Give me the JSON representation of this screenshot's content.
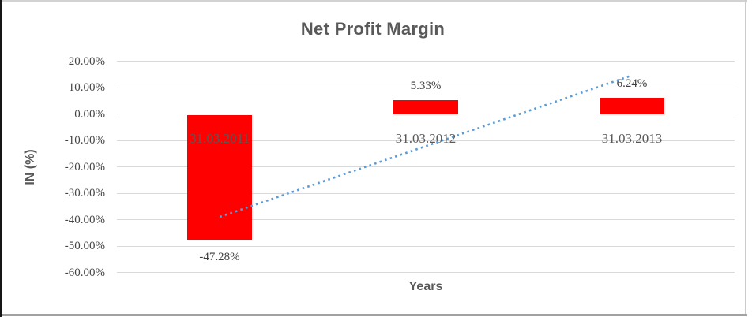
{
  "chart_data": {
    "type": "bar",
    "title": "Net Profit Margin",
    "xlabel": "Years",
    "ylabel": "IN (%)",
    "categories": [
      "31.03.2011",
      "31.03.2012",
      "31.03.2013"
    ],
    "values": [
      -47.28,
      5.33,
      6.24
    ],
    "data_labels": [
      "-47.28%",
      "5.33%",
      "6.24%"
    ],
    "ylim": [
      -60,
      20
    ],
    "y_tick_step": 10,
    "y_tick_labels": [
      "20.00%",
      "10.00%",
      "0.00%",
      "-10.00%",
      "-20.00%",
      "-30.00%",
      "-40.00%",
      "-50.00%",
      "-60.00%"
    ],
    "grid": true,
    "legend": false,
    "bar_color": "#ff0000",
    "gridline_color": "#d9d9d9",
    "trendline": {
      "type": "linear",
      "style": "dotted",
      "color": "#5b9bd5",
      "start_value": -38.9,
      "end_value": 14.6
    }
  }
}
